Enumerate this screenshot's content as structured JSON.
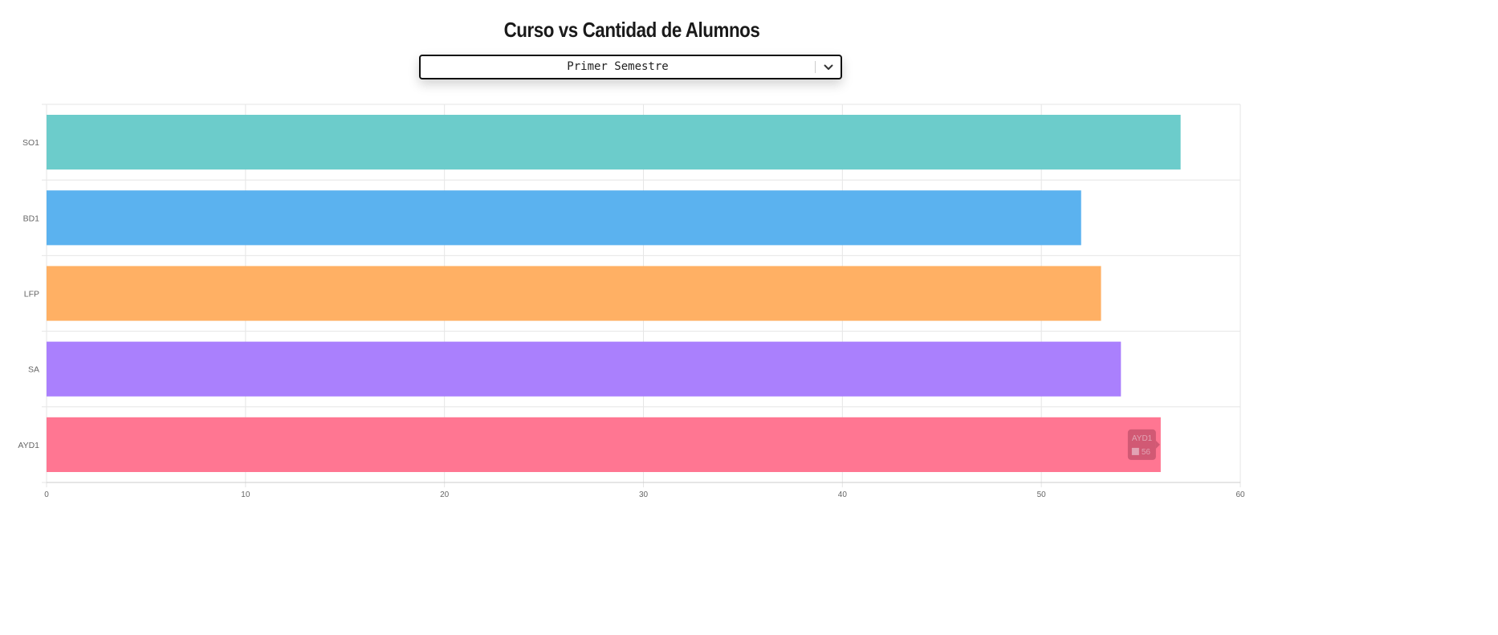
{
  "page": {
    "title": "Curso vs Cantidad de Alumnos"
  },
  "selector": {
    "value": "Primer Semestre",
    "icon": "chevron-down-icon"
  },
  "chart_data": {
    "type": "bar",
    "orientation": "horizontal",
    "title": "",
    "xlabel": "",
    "ylabel": "",
    "categories": [
      "SO1",
      "BD1",
      "LFP",
      "SA",
      "AYD1"
    ],
    "values": [
      57,
      52,
      53,
      54,
      56
    ],
    "colors": [
      "#6ccccb",
      "#5bb2ef",
      "#ffb064",
      "#aa80fd",
      "#ff7692"
    ],
    "xlim": [
      0,
      60
    ],
    "x_ticks": [
      0,
      10,
      20,
      30,
      40,
      50,
      60
    ],
    "x_tick_labels": [
      "0",
      "10",
      "20",
      "30",
      "40",
      "50",
      "60"
    ],
    "grid": true,
    "legend": "none",
    "tooltip": {
      "category": "AYD1",
      "value": "56"
    }
  }
}
